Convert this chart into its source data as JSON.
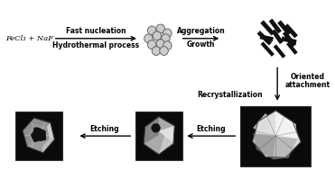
{
  "background_color": "#ffffff",
  "text_color": "#000000",
  "label_fecl3": "FeCl₃ + NaF",
  "label_fast_nucleation": "Fast nucleation",
  "label_hydrothermal": "Hydrothermal process",
  "label_aggregation": "Aggregation",
  "label_growth": "Growth",
  "label_recrystallization": "Recrystallization",
  "label_oriented": "Oriented",
  "label_attachment": "attachment",
  "label_etching1": "Etching",
  "label_etching2": "Etching",
  "fs": 6.0,
  "fs_small": 5.5
}
